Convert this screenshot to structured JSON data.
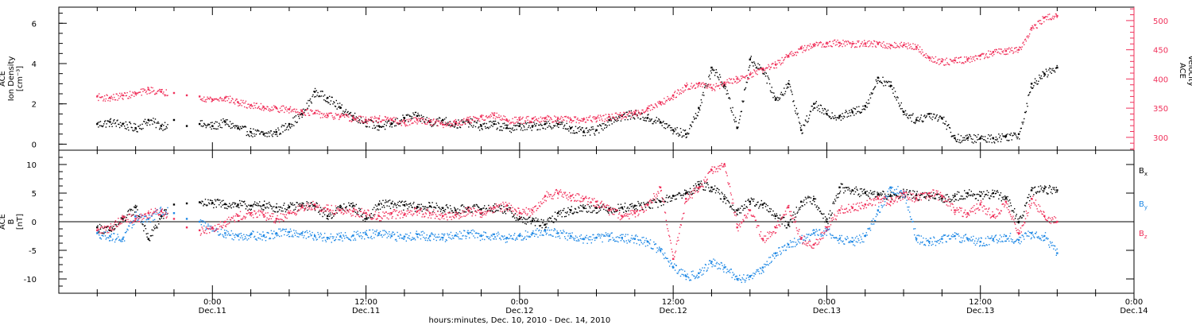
{
  "colors": {
    "black": "#000000",
    "pink": "#f0305a",
    "blue": "#1e88e5",
    "axis": "#000000"
  },
  "chart_data": [
    {
      "type": "scatter",
      "panel": "top",
      "ylabel_lines": [
        "ACE",
        "Ion Density",
        "[cm⁻³]"
      ],
      "ylim": [
        -0.3,
        6.8
      ],
      "yticks": [
        0,
        2,
        4,
        6
      ],
      "y2label_lines": [
        "ACE",
        "Velocity",
        "[km/s]"
      ],
      "y2lim": [
        278,
        523
      ],
      "y2ticks": [
        300,
        350,
        400,
        450,
        500
      ],
      "y2_color": "#f0305a",
      "series": [
        {
          "key": "density",
          "axis": "left",
          "color": "#000000",
          "x": [
            -9,
            -8,
            -7,
            -6,
            -5,
            -4,
            -3,
            -2,
            -1,
            0,
            1,
            2,
            3,
            4,
            5,
            6,
            7,
            8,
            9,
            10,
            11,
            12,
            13,
            14,
            15,
            16,
            17,
            18,
            19,
            20,
            21,
            22,
            23,
            24,
            25,
            26,
            27,
            28,
            29,
            30,
            31,
            32,
            33,
            34,
            35,
            36,
            37,
            38,
            39,
            40,
            41,
            42,
            43,
            44,
            45,
            46,
            47,
            48,
            49,
            50,
            51,
            52,
            53,
            54,
            55,
            56,
            57,
            58,
            59,
            60,
            61,
            62,
            63,
            64,
            65,
            66
          ],
          "y": [
            1.0,
            1.1,
            1.0,
            0.8,
            1.2,
            0.9,
            1.2,
            0.9,
            1.0,
            0.9,
            1.1,
            0.8,
            0.6,
            0.5,
            0.6,
            1.0,
            1.5,
            2.6,
            2.3,
            1.8,
            1.4,
            1.1,
            0.9,
            1.0,
            1.3,
            1.4,
            1.1,
            1.2,
            1.0,
            1.1,
            0.9,
            1.0,
            0.8,
            0.9,
            0.9,
            1.0,
            1.0,
            0.8,
            0.6,
            0.7,
            1.2,
            1.4,
            1.5,
            1.3,
            1.1,
            0.7,
            0.5,
            1.8,
            3.8,
            2.9,
            0.8,
            4.2,
            3.7,
            2.2,
            3.0,
            0.7,
            2.0,
            1.5,
            1.4,
            1.6,
            1.9,
            3.3,
            2.9,
            1.6,
            1.2,
            1.5,
            1.3,
            0.3,
            0.3,
            0.3,
            0.3,
            0.4,
            0.5,
            3.0,
            3.5,
            3.8
          ],
          "gap": [
            [
              -3.5,
              -1
            ]
          ]
        },
        {
          "key": "velocity",
          "axis": "right",
          "color": "#f0305a",
          "x": [
            -9,
            -8,
            -7,
            -6,
            -5,
            -4,
            -3,
            -2,
            -1,
            0,
            1,
            2,
            3,
            4,
            5,
            6,
            7,
            8,
            9,
            10,
            11,
            12,
            13,
            14,
            15,
            16,
            17,
            18,
            19,
            20,
            21,
            22,
            23,
            24,
            25,
            26,
            27,
            28,
            29,
            30,
            31,
            32,
            33,
            34,
            35,
            36,
            37,
            38,
            39,
            40,
            41,
            42,
            43,
            44,
            45,
            46,
            47,
            48,
            49,
            50,
            51,
            52,
            53,
            54,
            55,
            56,
            57,
            58,
            59,
            60,
            61,
            62,
            63,
            64,
            65,
            66
          ],
          "y": [
            370,
            368,
            372,
            375,
            382,
            378,
            376,
            372,
            370,
            365,
            368,
            360,
            355,
            352,
            350,
            348,
            345,
            342,
            338,
            336,
            333,
            330,
            332,
            330,
            325,
            330,
            328,
            322,
            326,
            330,
            335,
            338,
            330,
            330,
            332,
            333,
            332,
            330,
            331,
            333,
            335,
            338,
            342,
            350,
            360,
            372,
            388,
            392,
            385,
            394,
            400,
            408,
            418,
            425,
            440,
            452,
            458,
            462,
            462,
            460,
            461,
            460,
            458,
            458,
            455,
            436,
            430,
            432,
            434,
            440,
            446,
            448,
            450,
            487,
            505,
            508
          ],
          "gap": [
            [
              -3.5,
              -1
            ]
          ]
        }
      ]
    },
    {
      "type": "scatter",
      "panel": "bottom",
      "ylabel_lines": [
        "ACE",
        "B",
        "[nT]"
      ],
      "ylim": [
        -12.5,
        12.5
      ],
      "yticks": [
        -10,
        -5,
        0,
        5,
        10
      ],
      "zero_line": true,
      "legend_placement": "right",
      "series": [
        {
          "key": "bx",
          "name": "Bx",
          "name_sub": "x",
          "name_main": "B",
          "color": "#000000",
          "x": [
            -9,
            -8,
            -7,
            -6,
            -5,
            -4,
            -3,
            -2,
            -1,
            0,
            1,
            2,
            3,
            4,
            5,
            6,
            7,
            8,
            9,
            10,
            11,
            12,
            13,
            14,
            15,
            16,
            17,
            18,
            19,
            20,
            21,
            22,
            23,
            24,
            25,
            26,
            27,
            28,
            29,
            30,
            31,
            32,
            33,
            34,
            35,
            36,
            37,
            38,
            39,
            40,
            41,
            42,
            43,
            44,
            45,
            46,
            47,
            48,
            49,
            50,
            51,
            52,
            53,
            54,
            55,
            56,
            57,
            58,
            59,
            60,
            61,
            62,
            63,
            64,
            65,
            66
          ],
          "y": [
            -1.0,
            -1.5,
            0.5,
            2.5,
            -3.0,
            1.0,
            3.0,
            3.2,
            3.4,
            3.3,
            3.1,
            3.0,
            2.8,
            2.9,
            2.5,
            2.6,
            2.9,
            2.8,
            1.0,
            2.5,
            2.8,
            0.5,
            3.0,
            3.2,
            2.9,
            2.6,
            2.7,
            2.4,
            2.0,
            2.5,
            2.2,
            2.5,
            2.2,
            0.5,
            0.2,
            -0.5,
            1.5,
            2.0,
            2.5,
            2.4,
            2.3,
            2.5,
            2.8,
            3.0,
            3.5,
            4.5,
            5.0,
            6.5,
            6.0,
            4.0,
            2.0,
            3.5,
            3.0,
            1.0,
            -0.5,
            3.5,
            4.0,
            0.0,
            6.0,
            5.5,
            5.0,
            4.8,
            4.5,
            5.0,
            4.6,
            4.5,
            4.0,
            4.5,
            5.0,
            4.5,
            5.0,
            4.2,
            0.0,
            5.5,
            5.8,
            5.5
          ],
          "gap": [
            [
              -3.5,
              -1
            ]
          ]
        },
        {
          "key": "by",
          "name": "By",
          "name_sub": "y",
          "name_main": "B",
          "color": "#1e88e5",
          "x": [
            -9,
            -8,
            -7,
            -6,
            -5,
            -4,
            -3,
            -2,
            -1,
            0,
            1,
            2,
            3,
            4,
            5,
            6,
            7,
            8,
            9,
            10,
            11,
            12,
            13,
            14,
            15,
            16,
            17,
            18,
            19,
            20,
            21,
            22,
            23,
            24,
            25,
            26,
            27,
            28,
            29,
            30,
            31,
            32,
            33,
            34,
            35,
            36,
            37,
            38,
            39,
            40,
            41,
            42,
            43,
            44,
            45,
            46,
            47,
            48,
            49,
            50,
            51,
            52,
            53,
            54,
            55,
            56,
            57,
            58,
            59,
            60,
            61,
            62,
            63,
            64,
            65,
            66
          ],
          "y": [
            -2.0,
            -2.5,
            -3.0,
            1.0,
            0.5,
            2.0,
            1.5,
            0.5,
            0.0,
            -1.0,
            -2.0,
            -2.5,
            -2.2,
            -2.5,
            -2.0,
            -1.8,
            -2.0,
            -2.5,
            -2.8,
            -2.6,
            -2.4,
            -2.2,
            -2.0,
            -2.5,
            -2.6,
            -2.2,
            -2.5,
            -2.8,
            -2.4,
            -2.0,
            -2.5,
            -2.2,
            -2.8,
            -2.5,
            -2.0,
            -1.5,
            -2.0,
            -2.5,
            -3.0,
            -2.8,
            -2.5,
            -2.8,
            -3.0,
            -3.5,
            -5.0,
            -8.0,
            -9.5,
            -9.0,
            -7.0,
            -8.0,
            -10.0,
            -9.5,
            -8.0,
            -5.5,
            -4.0,
            -3.0,
            -2.0,
            -1.5,
            -3.0,
            -3.5,
            -2.5,
            2.0,
            6.0,
            5.0,
            -3.0,
            -3.5,
            -3.0,
            -2.5,
            -3.0,
            -3.5,
            -3.0,
            -2.5,
            -3.2,
            -2.0,
            -2.5,
            -5.5
          ],
          "gap": [
            [
              -3.5,
              -1
            ]
          ]
        },
        {
          "key": "bz",
          "name": "Bz",
          "name_sub": "z",
          "name_main": "B",
          "color": "#f0305a",
          "x": [
            -9,
            -8,
            -7,
            -6,
            -5,
            -4,
            -3,
            -2,
            -1,
            0,
            1,
            2,
            3,
            4,
            5,
            6,
            7,
            8,
            9,
            10,
            11,
            12,
            13,
            14,
            15,
            16,
            17,
            18,
            19,
            20,
            21,
            22,
            23,
            24,
            25,
            26,
            27,
            28,
            29,
            30,
            31,
            32,
            33,
            34,
            35,
            36,
            37,
            38,
            39,
            40,
            41,
            42,
            43,
            44,
            45,
            46,
            47,
            48,
            49,
            50,
            51,
            52,
            53,
            54,
            55,
            56,
            57,
            58,
            59,
            60,
            61,
            62,
            63,
            64,
            65,
            66
          ],
          "y": [
            -1.5,
            -1.0,
            0.8,
            0.5,
            1.5,
            1.8,
            0.5,
            -1.0,
            -1.5,
            -1.0,
            0.0,
            1.0,
            1.5,
            1.2,
            0.5,
            1.5,
            2.5,
            3.0,
            2.2,
            2.0,
            1.8,
            1.5,
            1.0,
            1.5,
            1.2,
            1.8,
            1.5,
            1.0,
            1.2,
            2.0,
            1.5,
            2.5,
            2.8,
            1.5,
            2.0,
            4.5,
            5.0,
            4.5,
            4.0,
            3.5,
            2.0,
            1.0,
            1.5,
            3.0,
            6.0,
            -6.5,
            4.0,
            6.0,
            9.0,
            10.0,
            -1.0,
            2.0,
            -3.0,
            -1.0,
            2.5,
            -3.0,
            -4.0,
            -1.0,
            2.0,
            2.5,
            3.0,
            4.0,
            3.5,
            5.0,
            4.0,
            5.0,
            4.5,
            2.0,
            1.5,
            3.0,
            1.0,
            3.5,
            -2.0,
            4.0,
            1.0,
            0.0
          ],
          "gap": [
            [
              -3.5,
              -1
            ]
          ]
        }
      ]
    }
  ],
  "x_axis": {
    "xlim": [
      -12,
      72
    ],
    "unit": "hours after Dec.11 00:00",
    "major_ticks": [
      {
        "x": 0,
        "time": "0:00",
        "date": "Dec.11"
      },
      {
        "x": 12,
        "time": "12:00",
        "date": "Dec.11"
      },
      {
        "x": 24,
        "time": "0:00",
        "date": "Dec.12"
      },
      {
        "x": 36,
        "time": "12:00",
        "date": "Dec.12"
      },
      {
        "x": 48,
        "time": "0:00",
        "date": "Dec.13"
      },
      {
        "x": 60,
        "time": "12:00",
        "date": "Dec.13"
      },
      {
        "x": 72,
        "time": "0:00",
        "date": "Dec.14"
      }
    ],
    "xlabel": "hours:minutes, Dec. 10, 2010 - Dec. 14, 2010"
  }
}
